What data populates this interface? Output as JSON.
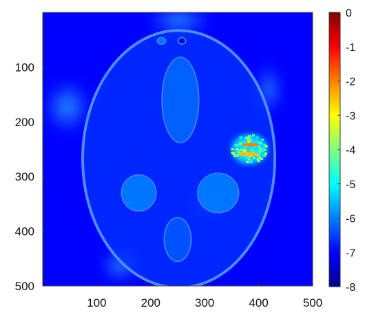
{
  "chart_data": {
    "type": "heatmap",
    "title": "",
    "xlabel": "",
    "ylabel": "",
    "xlim": [
      0,
      500
    ],
    "ylim": [
      500,
      0
    ],
    "x_ticks": [
      100,
      200,
      300,
      400,
      500
    ],
    "y_ticks": [
      100,
      200,
      300,
      400,
      500
    ],
    "colorbar": {
      "colormap": "jet",
      "range": [
        -8,
        0
      ],
      "ticks": [
        0,
        -1,
        -2,
        -3,
        -4,
        -5,
        -6,
        -7,
        -8
      ]
    },
    "background_value": -7,
    "regions": [
      {
        "name": "head-outline",
        "shape": "ellipse",
        "cx": 252,
        "cy": 268,
        "rx": 178,
        "ry": 235,
        "value": -6.6
      },
      {
        "name": "upper-ellipse",
        "shape": "ellipse",
        "cx": 255,
        "cy": 160,
        "rx": 34,
        "ry": 78,
        "value": -6.2
      },
      {
        "name": "left-circle",
        "shape": "ellipse",
        "cx": 178,
        "cy": 330,
        "rx": 32,
        "ry": 33,
        "value": -6.0
      },
      {
        "name": "right-circle",
        "shape": "ellipse",
        "cx": 325,
        "cy": 330,
        "rx": 38,
        "ry": 36,
        "value": -6.0
      },
      {
        "name": "lower-ellipse",
        "shape": "ellipse",
        "cx": 250,
        "cy": 415,
        "rx": 25,
        "ry": 40,
        "value": -6.3
      },
      {
        "name": "small-square-left",
        "shape": "ellipse",
        "cx": 220,
        "cy": 52,
        "rx": 8,
        "ry": 6,
        "value": -6.0
      },
      {
        "name": "small-square-right",
        "shape": "ellipse",
        "cx": 258,
        "cy": 52,
        "rx": 7,
        "ry": 6,
        "value": -7.6
      },
      {
        "name": "artifact-hot-region",
        "shape": "ellipse",
        "cx": 383,
        "cy": 250,
        "rx": 33,
        "ry": 27,
        "value": -2.0
      }
    ]
  }
}
